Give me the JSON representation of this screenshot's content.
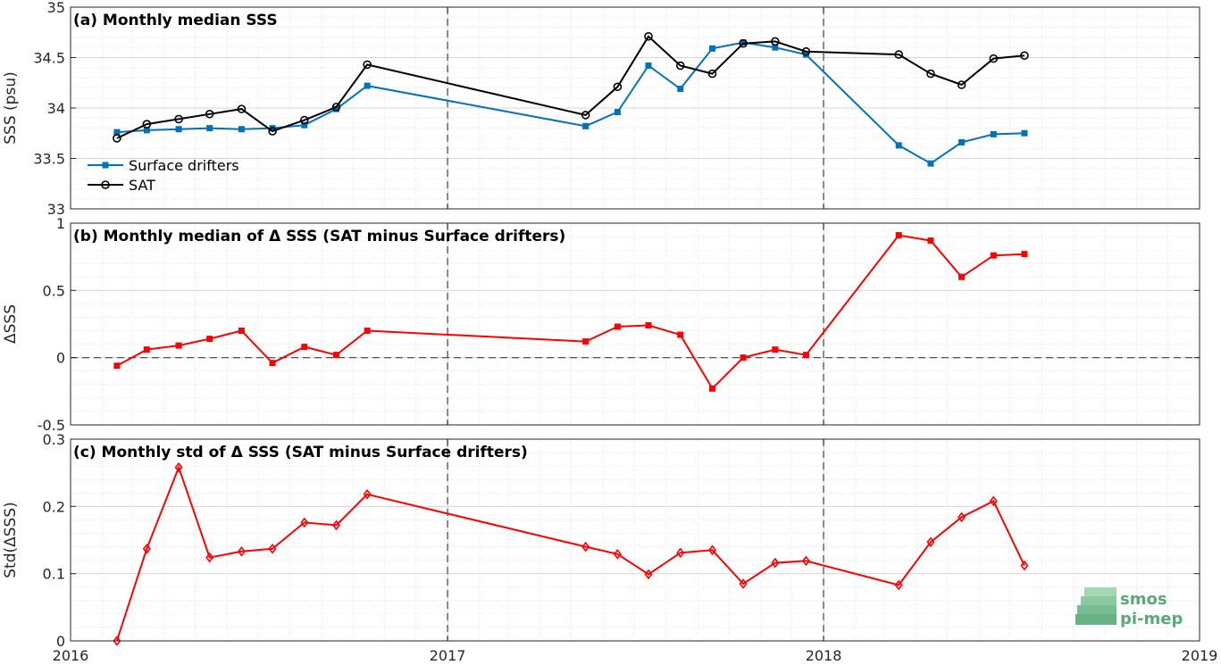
{
  "chart_data": [
    {
      "type": "line",
      "title": "(a) Monthly median SSS",
      "ylabel": "SSS (psu)",
      "xlim": [
        "2016-01-01",
        "2019-01-01"
      ],
      "ylim": [
        33,
        35
      ],
      "yticks": [
        33,
        33.5,
        34,
        34.5,
        35
      ],
      "ytick_labels": [
        "33",
        "33.5",
        "34",
        "34.5",
        "35"
      ],
      "grid": true,
      "legend": "bottom-left",
      "series": [
        {
          "name": "Surface drifters",
          "color": "#0072BD",
          "marker": "square",
          "x": [
            "2016-02-15",
            "2016-03-15",
            "2016-04-15",
            "2016-05-15",
            "2016-06-15",
            "2016-07-15",
            "2016-08-15",
            "2016-09-15",
            "2016-10-15",
            "2017-05-15",
            "2017-06-15",
            "2017-07-15",
            "2017-08-15",
            "2017-09-15",
            "2017-10-15",
            "2017-11-15",
            "2017-12-15",
            "2018-03-15",
            "2018-04-15",
            "2018-05-15",
            "2018-06-15",
            "2018-07-15"
          ],
          "values": [
            33.76,
            33.78,
            33.79,
            33.8,
            33.79,
            33.8,
            33.83,
            33.99,
            34.22,
            33.82,
            33.96,
            34.42,
            34.19,
            34.59,
            34.65,
            34.6,
            34.53,
            33.63,
            33.45,
            33.66,
            33.74,
            33.75
          ]
        },
        {
          "name": "SAT",
          "color": "#000000",
          "marker": "circle",
          "x": [
            "2016-02-15",
            "2016-03-15",
            "2016-04-15",
            "2016-05-15",
            "2016-06-15",
            "2016-07-15",
            "2016-08-15",
            "2016-09-15",
            "2016-10-15",
            "2017-05-15",
            "2017-06-15",
            "2017-07-15",
            "2017-08-15",
            "2017-09-15",
            "2017-10-15",
            "2017-11-15",
            "2017-12-15",
            "2018-03-15",
            "2018-04-15",
            "2018-05-15",
            "2018-06-15",
            "2018-07-15"
          ],
          "values": [
            33.7,
            33.84,
            33.89,
            33.94,
            33.99,
            33.77,
            33.88,
            34.01,
            34.43,
            33.93,
            34.21,
            34.71,
            34.42,
            34.34,
            34.64,
            34.66,
            34.56,
            34.53,
            34.34,
            34.23,
            34.49,
            34.52
          ]
        }
      ]
    },
    {
      "type": "line",
      "title": "(b) Monthly median of Δ SSS (SAT minus Surface drifters)",
      "ylabel": "ΔSSS",
      "xlim": [
        "2016-01-01",
        "2019-01-01"
      ],
      "ylim": [
        -0.5,
        1
      ],
      "yticks": [
        -0.5,
        0,
        0.5,
        1
      ],
      "ytick_labels": [
        "-0.5",
        "0",
        "0.5",
        "1"
      ],
      "grid": true,
      "zero_line": true,
      "series": [
        {
          "color": "#FF0000",
          "marker": "square",
          "x": [
            "2016-02-15",
            "2016-03-15",
            "2016-04-15",
            "2016-05-15",
            "2016-06-15",
            "2016-07-15",
            "2016-08-15",
            "2016-09-15",
            "2016-10-15",
            "2017-05-15",
            "2017-06-15",
            "2017-07-15",
            "2017-08-15",
            "2017-09-15",
            "2017-10-15",
            "2017-11-15",
            "2017-12-15",
            "2018-03-15",
            "2018-04-15",
            "2018-05-15",
            "2018-06-15",
            "2018-07-15"
          ],
          "values": [
            -0.06,
            0.06,
            0.09,
            0.14,
            0.2,
            -0.04,
            0.08,
            0.02,
            0.2,
            0.12,
            0.23,
            0.24,
            0.17,
            -0.23,
            0.0,
            0.06,
            0.02,
            0.91,
            0.87,
            0.6,
            0.76,
            0.77
          ]
        }
      ]
    },
    {
      "type": "line",
      "title": "(c) Monthly std of Δ SSS (SAT minus Surface drifters)",
      "ylabel": "Std(ΔSSS)",
      "xlim": [
        "2016-01-01",
        "2019-01-01"
      ],
      "ylim": [
        0,
        0.3
      ],
      "yticks": [
        0,
        0.1,
        0.2,
        0.3
      ],
      "ytick_labels": [
        "0",
        "0.1",
        "0.2",
        "0.3"
      ],
      "xticks": [
        "2016-01-01",
        "2017-01-01",
        "2018-01-01",
        "2019-01-01"
      ],
      "xtick_labels": [
        "2016",
        "2017",
        "2018",
        "2019"
      ],
      "grid": true,
      "series": [
        {
          "color": "#FF0000",
          "marker": "diamond",
          "x": [
            "2016-02-15",
            "2016-03-15",
            "2016-04-15",
            "2016-05-15",
            "2016-06-15",
            "2016-07-15",
            "2016-08-15",
            "2016-09-15",
            "2016-10-15",
            "2017-05-15",
            "2017-06-15",
            "2017-07-15",
            "2017-08-15",
            "2017-09-15",
            "2017-10-15",
            "2017-11-15",
            "2017-12-15",
            "2018-03-15",
            "2018-04-15",
            "2018-05-15",
            "2018-06-15",
            "2018-07-15"
          ],
          "values": [
            0.0,
            0.137,
            0.258,
            0.124,
            0.133,
            0.137,
            0.176,
            0.172,
            0.218,
            0.14,
            0.129,
            0.099,
            0.131,
            0.135,
            0.085,
            0.116,
            0.119,
            0.083,
            0.147,
            0.184,
            0.208,
            0.112
          ]
        }
      ]
    }
  ],
  "logo": {
    "line1": "smos",
    "line2": "pi-mep",
    "color": "#5aa87a"
  }
}
